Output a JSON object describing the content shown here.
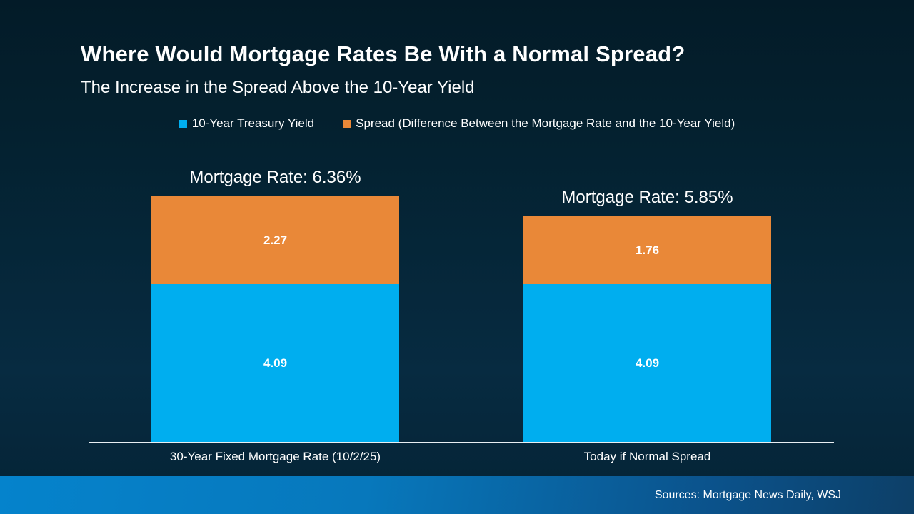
{
  "header": {
    "title": "Where Would Mortgage Rates Be With a Normal Spread?",
    "subtitle": "The Increase in the Spread Above the 10-Year Yield"
  },
  "legend": {
    "items": [
      {
        "label": "10-Year Treasury Yield",
        "color": "#00AEEF"
      },
      {
        "label": "Spread (Difference Between the Mortgage Rate and the 10-Year Yield)",
        "color": "#E98838"
      }
    ]
  },
  "chart_data": {
    "type": "bar",
    "stacked": true,
    "title": "Where Would Mortgage Rates Be With a Normal Spread?",
    "subtitle": "The Increase in the Spread Above the 10-Year Yield",
    "categories": [
      "30-Year Fixed Mortgage Rate (10/2/25)",
      "Today if Normal Spread"
    ],
    "series": [
      {
        "name": "10-Year Treasury Yield",
        "color": "#00AEEF",
        "values": [
          4.09,
          4.09
        ]
      },
      {
        "name": "Spread (Difference Between the Mortgage Rate and the 10-Year Yield)",
        "color": "#E98838",
        "values": [
          2.27,
          1.76
        ]
      }
    ],
    "totals": [
      6.36,
      5.85
    ],
    "bar_annotations": [
      "Mortgage Rate: 6.36%",
      "Mortgage Rate: 5.85%"
    ],
    "xlabel": "",
    "ylabel": "",
    "ylim": [
      0,
      6.36
    ],
    "grid": false,
    "legend_position": "top",
    "value_labels": "inside"
  },
  "footer": {
    "sources": "Sources: Mortgage News Daily, WSJ"
  },
  "colors": {
    "background_top": "#031B28",
    "background_bottom": "#072B41",
    "bar_blue": "#00AEEF",
    "bar_orange": "#E98838",
    "footer_gradient_left": "#0583CC",
    "footer_gradient_right": "#0D3F67",
    "axis_line": "#E9EFF3",
    "text": "#FFFFFF"
  }
}
